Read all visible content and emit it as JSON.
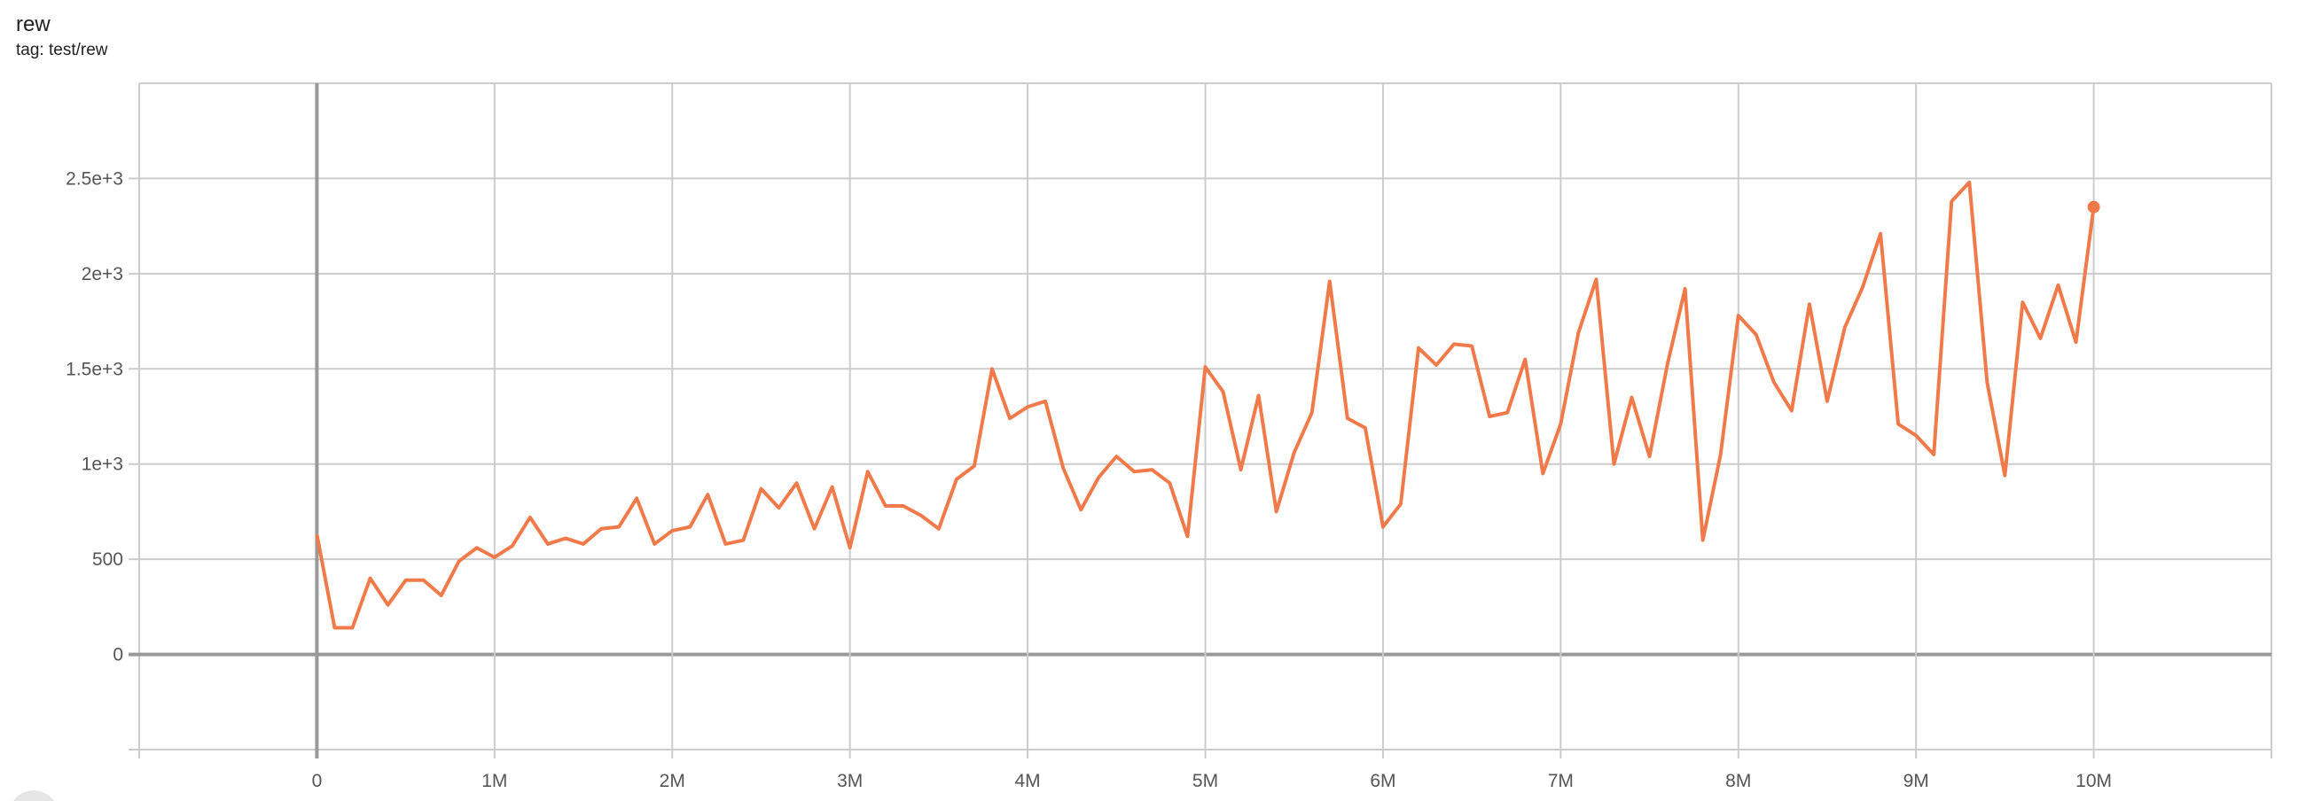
{
  "chart_data": {
    "type": "line",
    "title": "rew",
    "subtitle": "tag: test/rew",
    "xlabel": "",
    "ylabel": "",
    "xlim": [
      -1000000,
      11000000
    ],
    "ylim": [
      -500,
      3000
    ],
    "grid": true,
    "x_ticks": [
      {
        "v": 0,
        "label": "0"
      },
      {
        "v": 1000000,
        "label": "1M"
      },
      {
        "v": 2000000,
        "label": "2M"
      },
      {
        "v": 3000000,
        "label": "3M"
      },
      {
        "v": 4000000,
        "label": "4M"
      },
      {
        "v": 5000000,
        "label": "5M"
      },
      {
        "v": 6000000,
        "label": "6M"
      },
      {
        "v": 7000000,
        "label": "7M"
      },
      {
        "v": 8000000,
        "label": "8M"
      },
      {
        "v": 9000000,
        "label": "9M"
      },
      {
        "v": 10000000,
        "label": "10M"
      }
    ],
    "y_ticks": [
      {
        "v": 0,
        "label": "0"
      },
      {
        "v": 500,
        "label": "500"
      },
      {
        "v": 1000,
        "label": "1e+3"
      },
      {
        "v": 1500,
        "label": "1.5e+3"
      },
      {
        "v": 2000,
        "label": "2e+3"
      },
      {
        "v": 2500,
        "label": "2.5e+3"
      }
    ],
    "series": [
      {
        "color": "#f07a4a",
        "x_step": 100000,
        "x_start": 0,
        "values": [
          630,
          140,
          140,
          400,
          260,
          390,
          390,
          310,
          490,
          560,
          510,
          570,
          720,
          580,
          610,
          580,
          660,
          670,
          820,
          580,
          650,
          670,
          840,
          580,
          600,
          870,
          770,
          900,
          660,
          880,
          560,
          960,
          780,
          780,
          730,
          660,
          920,
          990,
          1500,
          1240,
          1300,
          1330,
          980,
          760,
          930,
          1040,
          960,
          970,
          900,
          620,
          1510,
          1380,
          970,
          1360,
          750,
          1060,
          1270,
          1960,
          1240,
          1190,
          670,
          790,
          1610,
          1520,
          1630,
          1620,
          1250,
          1270,
          1550,
          950,
          1210,
          1690,
          1970,
          1000,
          1350,
          1040,
          1520,
          1920,
          600,
          1050,
          1780,
          1680,
          1430,
          1280,
          1840,
          1330,
          1720,
          1930,
          2210,
          1210,
          1150,
          1050,
          2380,
          2480,
          1430,
          940,
          1850,
          1660,
          1940,
          1640,
          2350
        ]
      }
    ]
  }
}
